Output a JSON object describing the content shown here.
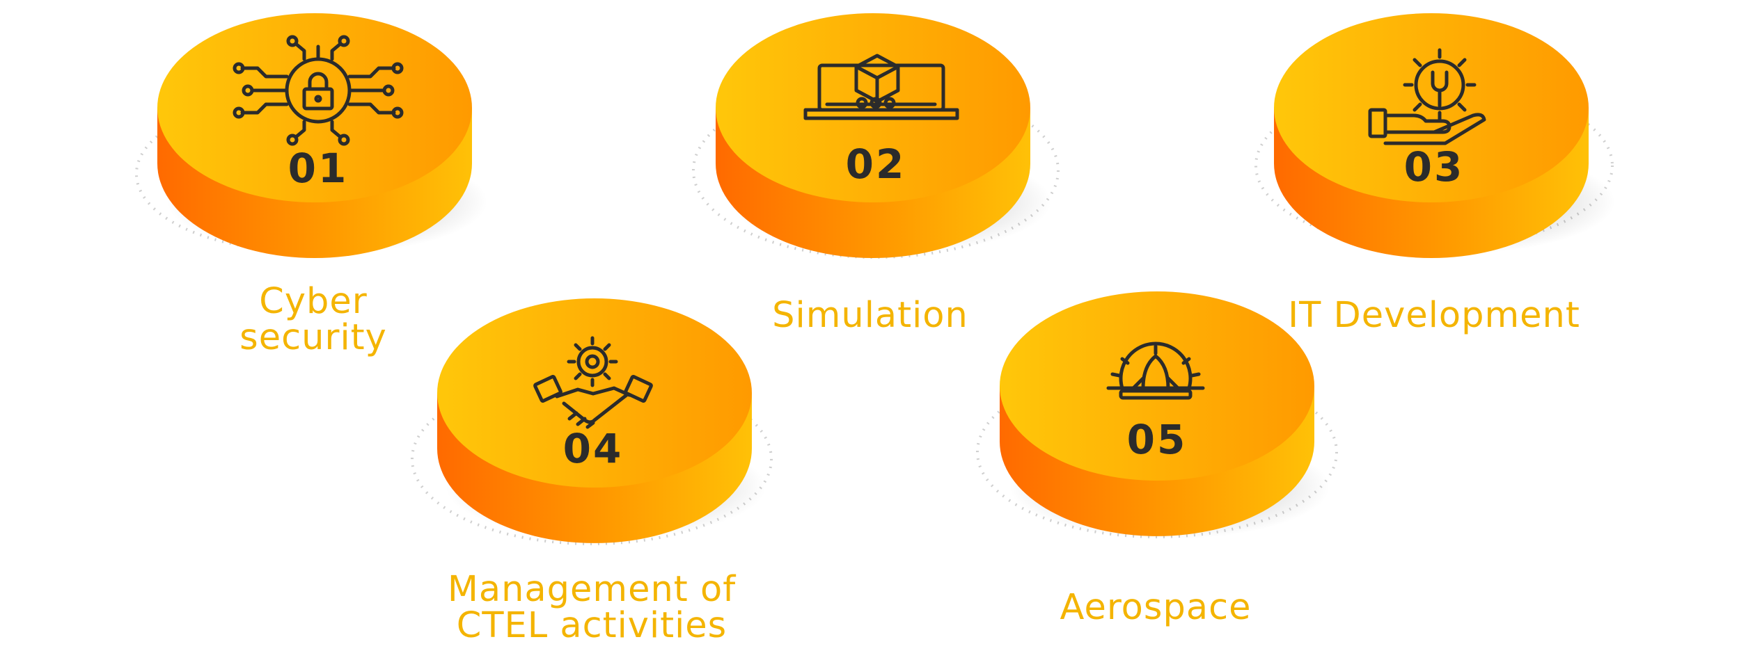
{
  "colors": {
    "disc_light": "#FFC107",
    "disc_dark": "#FF8A00",
    "side_dark": "#FF6A00",
    "label": "#F4B400",
    "ink": "#2B2B2B"
  },
  "items": [
    {
      "number": "01",
      "label_lines": [
        "Cyber",
        "security"
      ],
      "icon": "cyber-lock-circuit-icon"
    },
    {
      "number": "02",
      "label_lines": [
        "Simulation"
      ],
      "icon": "laptop-cube-icon"
    },
    {
      "number": "03",
      "label_lines": [
        "IT Development"
      ],
      "icon": "hand-gear-wrench-icon"
    },
    {
      "number": "04",
      "label_lines": [
        "Management of",
        "CTEL activities"
      ],
      "icon": "handshake-gear-icon"
    },
    {
      "number": "05",
      "label_lines": [
        "Aerospace"
      ],
      "icon": "rocket-gear-icon"
    }
  ]
}
